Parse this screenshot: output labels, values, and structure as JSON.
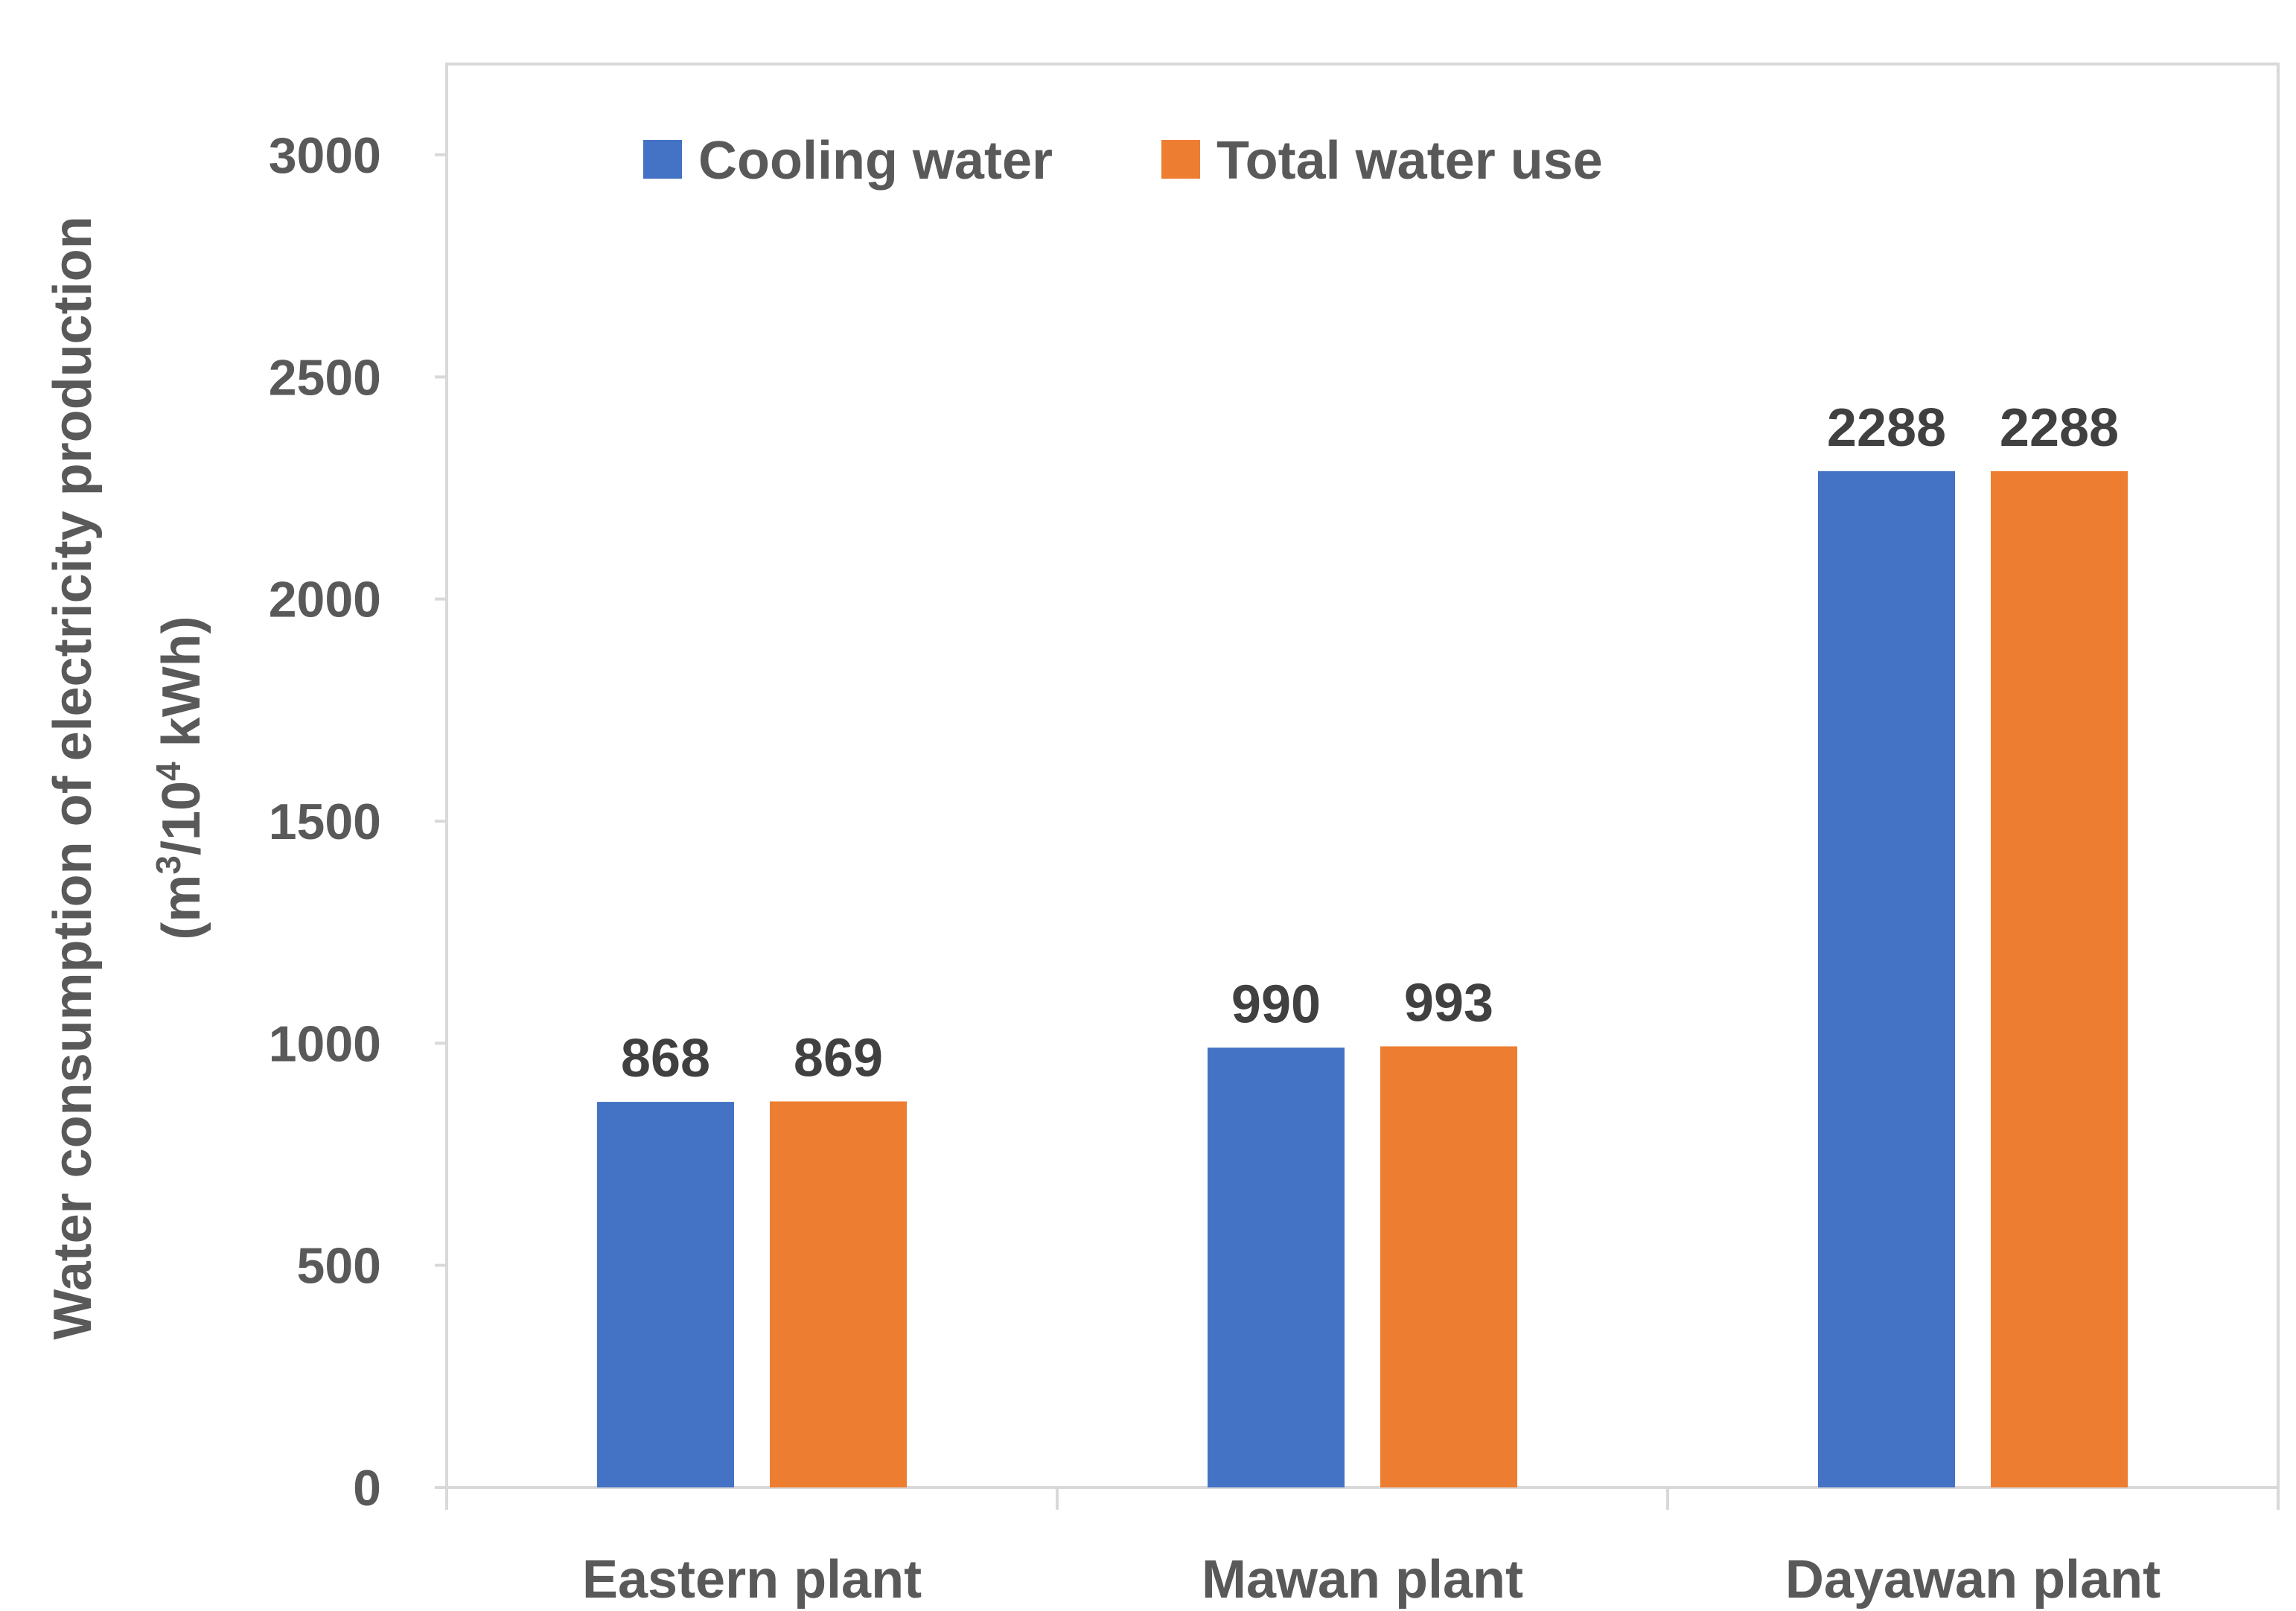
{
  "chart_data": {
    "type": "bar",
    "title": "",
    "categories": [
      "Eastern plant",
      "Mawan plant",
      "Dayawan plant"
    ],
    "series": [
      {
        "name": "Cooling water",
        "color": "#4472C4",
        "values": [
          868,
          990,
          2288
        ]
      },
      {
        "name": "Total water use",
        "color": "#ED7D31",
        "values": [
          869,
          993,
          2288
        ]
      }
    ],
    "xlabel": "",
    "ylabel": {
      "line1": "Water consumption of electricity production",
      "line2_open": "(m",
      "line2_sup1": "3",
      "line2_mid": "/10",
      "line2_sup2": "4",
      "line2_close": " kWh)"
    },
    "ylim": [
      0,
      3200
    ],
    "yticks": [
      0,
      500,
      1000,
      1500,
      2000,
      2500,
      3000
    ],
    "grid": false,
    "legend_position": "top"
  }
}
